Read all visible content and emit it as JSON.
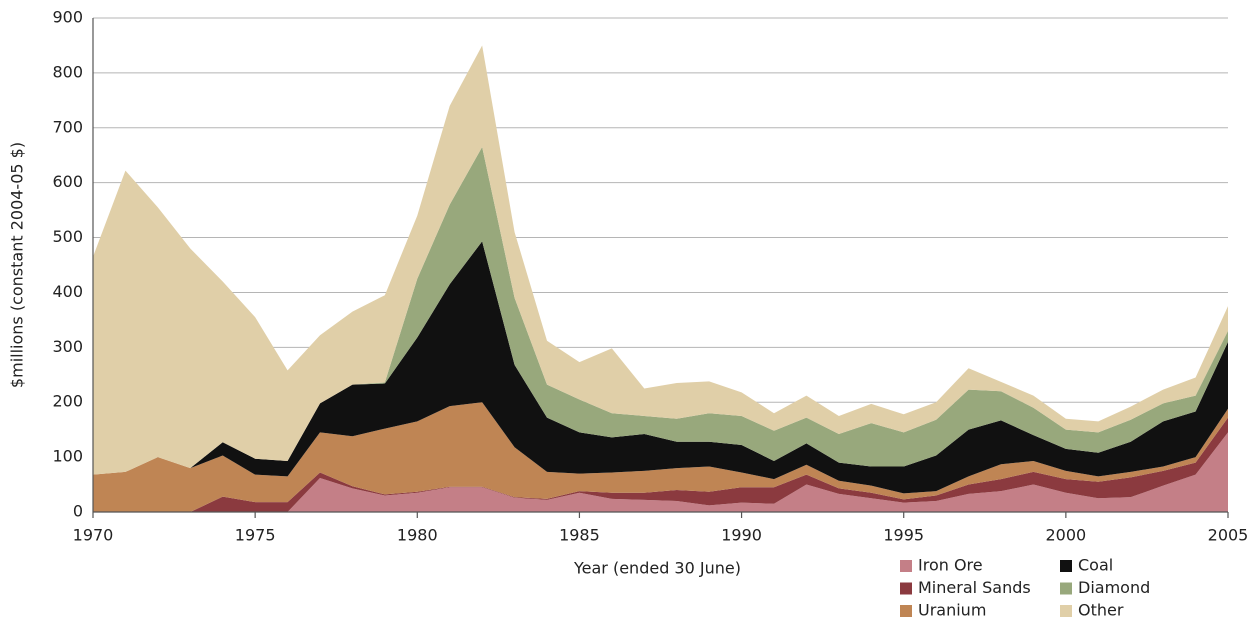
{
  "chart_data": {
    "type": "stacked_area",
    "x_label": "Year (ended 30 June)",
    "y_label": "$millions (constant 2004-05 $)",
    "x": [
      1970,
      1971,
      1972,
      1973,
      1974,
      1975,
      1976,
      1977,
      1978,
      1979,
      1980,
      1981,
      1982,
      1983,
      1984,
      1985,
      1986,
      1987,
      1988,
      1989,
      1990,
      1991,
      1992,
      1993,
      1994,
      1995,
      1996,
      1997,
      1998,
      1999,
      2000,
      2001,
      2002,
      2003,
      2004,
      2005
    ],
    "xlim": [
      1970,
      2005
    ],
    "xticks": [
      1970,
      1975,
      1980,
      1985,
      1990,
      1995,
      2000,
      2005
    ],
    "ylim": [
      0,
      900
    ],
    "yticks": [
      0,
      100,
      200,
      300,
      400,
      500,
      600,
      700,
      800,
      900
    ],
    "grid": true,
    "legend": "bottom-right",
    "series": [
      {
        "name": "Iron Ore",
        "color": "#c47f87",
        "values": [
          0,
          0,
          0,
          0,
          0,
          0,
          0,
          62,
          43,
          30,
          35,
          45,
          45,
          26,
          22,
          35,
          24,
          22,
          20,
          12,
          17,
          15,
          50,
          33,
          25,
          17,
          20,
          33,
          38,
          50,
          35,
          25,
          27,
          48,
          68,
          145
        ]
      },
      {
        "name": "Mineral Sands",
        "color": "#8b3a3f",
        "values": [
          0,
          0,
          0,
          0,
          28,
          18,
          18,
          10,
          4,
          2,
          2,
          1,
          1,
          1,
          2,
          3,
          11,
          13,
          20,
          25,
          28,
          30,
          18,
          10,
          10,
          6,
          10,
          17,
          22,
          23,
          25,
          30,
          36,
          27,
          22,
          27
        ]
      },
      {
        "name": "Uranium",
        "color": "#bf8554",
        "values": [
          68,
          73,
          100,
          80,
          75,
          50,
          47,
          73,
          91,
          120,
          128,
          147,
          154,
          91,
          49,
          32,
          37,
          40,
          40,
          46,
          27,
          15,
          18,
          14,
          13,
          11,
          8,
          15,
          27,
          20,
          15,
          10,
          10,
          8,
          10,
          16
        ]
      },
      {
        "name": "Coal",
        "color": "#111111",
        "values": [
          0,
          0,
          0,
          0,
          24,
          29,
          28,
          53,
          94,
          82,
          153,
          222,
          293,
          150,
          99,
          75,
          64,
          67,
          48,
          45,
          50,
          33,
          39,
          33,
          35,
          49,
          65,
          85,
          80,
          47,
          40,
          43,
          55,
          82,
          83,
          122
        ]
      },
      {
        "name": "Diamond",
        "color": "#98a87c",
        "values": [
          0,
          0,
          0,
          0,
          0,
          0,
          0,
          0,
          0,
          2,
          107,
          145,
          172,
          122,
          60,
          60,
          44,
          33,
          42,
          52,
          53,
          55,
          47,
          52,
          79,
          62,
          65,
          73,
          53,
          50,
          35,
          37,
          40,
          33,
          29,
          20
        ]
      },
      {
        "name": "Other",
        "color": "#e0cfa8",
        "values": [
          397,
          549,
          455,
          400,
          293,
          258,
          165,
          124,
          133,
          159,
          115,
          180,
          185,
          120,
          80,
          68,
          118,
          50,
          65,
          58,
          43,
          32,
          40,
          33,
          35,
          33,
          32,
          39,
          17,
          22,
          20,
          20,
          24,
          25,
          33,
          45
        ]
      }
    ]
  }
}
